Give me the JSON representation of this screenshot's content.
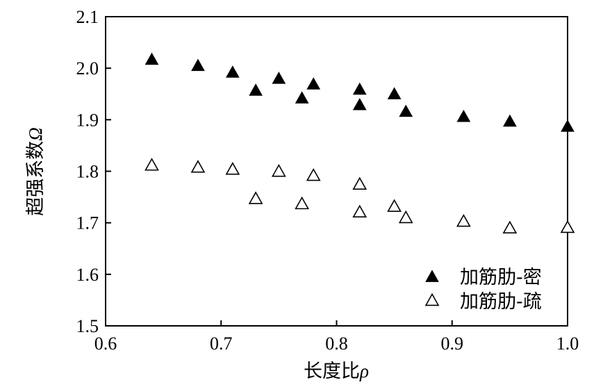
{
  "chart_data": {
    "type": "scatter",
    "xlabel": "长度比",
    "xlabel_symbol": "ρ",
    "ylabel": "超强系数",
    "ylabel_symbol": "Ω",
    "xlim": [
      0.6,
      1.0
    ],
    "ylim": [
      1.5,
      2.1
    ],
    "xticks": [
      "0.6",
      "0.7",
      "0.8",
      "0.9",
      "1.0"
    ],
    "yticks": [
      "1.5",
      "1.6",
      "1.7",
      "1.8",
      "1.9",
      "2.0",
      "2.1"
    ],
    "grid": false,
    "legend_position": "bottom-right",
    "series": [
      {
        "name": "加筋肋-密",
        "marker": "filled-triangle",
        "color": "#000000",
        "points": [
          [
            0.64,
            2.016
          ],
          [
            0.68,
            2.004
          ],
          [
            0.71,
            1.991
          ],
          [
            0.73,
            1.956
          ],
          [
            0.75,
            1.979
          ],
          [
            0.77,
            1.941
          ],
          [
            0.78,
            1.968
          ],
          [
            0.82,
            1.958
          ],
          [
            0.82,
            1.928
          ],
          [
            0.85,
            1.949
          ],
          [
            0.86,
            1.915
          ],
          [
            0.91,
            1.905
          ],
          [
            0.95,
            1.896
          ],
          [
            1.0,
            1.886
          ]
        ]
      },
      {
        "name": "加筋肋-疏",
        "marker": "open-triangle",
        "color": "#000000",
        "points": [
          [
            0.64,
            1.811
          ],
          [
            0.68,
            1.807
          ],
          [
            0.71,
            1.803
          ],
          [
            0.73,
            1.746
          ],
          [
            0.75,
            1.799
          ],
          [
            0.77,
            1.736
          ],
          [
            0.78,
            1.791
          ],
          [
            0.82,
            1.774
          ],
          [
            0.82,
            1.72
          ],
          [
            0.85,
            1.731
          ],
          [
            0.86,
            1.709
          ],
          [
            0.91,
            1.702
          ],
          [
            0.95,
            1.689
          ],
          [
            1.0,
            1.69
          ]
        ]
      }
    ]
  }
}
